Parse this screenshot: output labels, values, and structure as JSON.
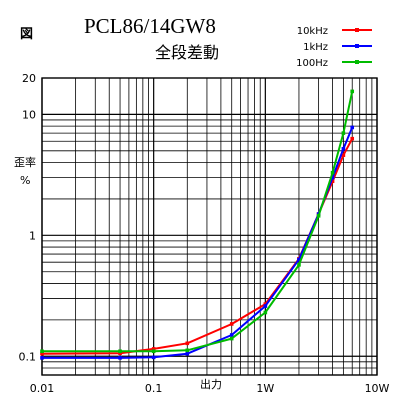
{
  "chart_data": {
    "type": "line",
    "corner_label": "図",
    "title": "PCL86/14GW8",
    "subtitle": "全段差動",
    "ylabel_top": "歪率",
    "ylabel_bottom": "%",
    "xlabel": "出力",
    "x_scale": "log",
    "y_scale": "log",
    "xlim": [
      0.01,
      10
    ],
    "ylim": [
      0.07,
      20
    ],
    "x_ticks": [
      {
        "value": 0.01,
        "label": "0.01"
      },
      {
        "value": 0.1,
        "label": "0.1"
      },
      {
        "value": 1,
        "label": "1W"
      },
      {
        "value": 10,
        "label": "10W"
      }
    ],
    "y_ticks": [
      {
        "value": 0.1,
        "label": "0.1"
      },
      {
        "value": 1,
        "label": "1"
      },
      {
        "value": 10,
        "label": "10"
      },
      {
        "value": 20,
        "label": "20"
      }
    ],
    "grid": true,
    "legend": "top-right",
    "series": [
      {
        "name": "10kHz",
        "color": "#ff0000",
        "x": [
          0.01,
          0.05,
          0.1,
          0.2,
          0.5,
          1.0,
          2.0,
          3.0,
          4.0,
          5.0,
          6.0
        ],
        "y": [
          0.105,
          0.106,
          0.115,
          0.128,
          0.185,
          0.27,
          0.64,
          1.5,
          2.8,
          4.6,
          6.3
        ]
      },
      {
        "name": "1kHz",
        "color": "#0000ff",
        "x": [
          0.01,
          0.05,
          0.1,
          0.2,
          0.5,
          1.0,
          2.0,
          3.0,
          4.0,
          5.0,
          6.0
        ],
        "y": [
          0.097,
          0.097,
          0.098,
          0.105,
          0.15,
          0.26,
          0.63,
          1.5,
          3.0,
          5.2,
          7.8
        ]
      },
      {
        "name": "100Hz",
        "color": "#00bb00",
        "x": [
          0.01,
          0.05,
          0.1,
          0.2,
          0.5,
          1.0,
          2.0,
          3.0,
          4.0,
          5.0,
          6.0
        ],
        "y": [
          0.11,
          0.11,
          0.11,
          0.112,
          0.14,
          0.23,
          0.57,
          1.45,
          3.3,
          7.0,
          15.5
        ]
      }
    ]
  }
}
